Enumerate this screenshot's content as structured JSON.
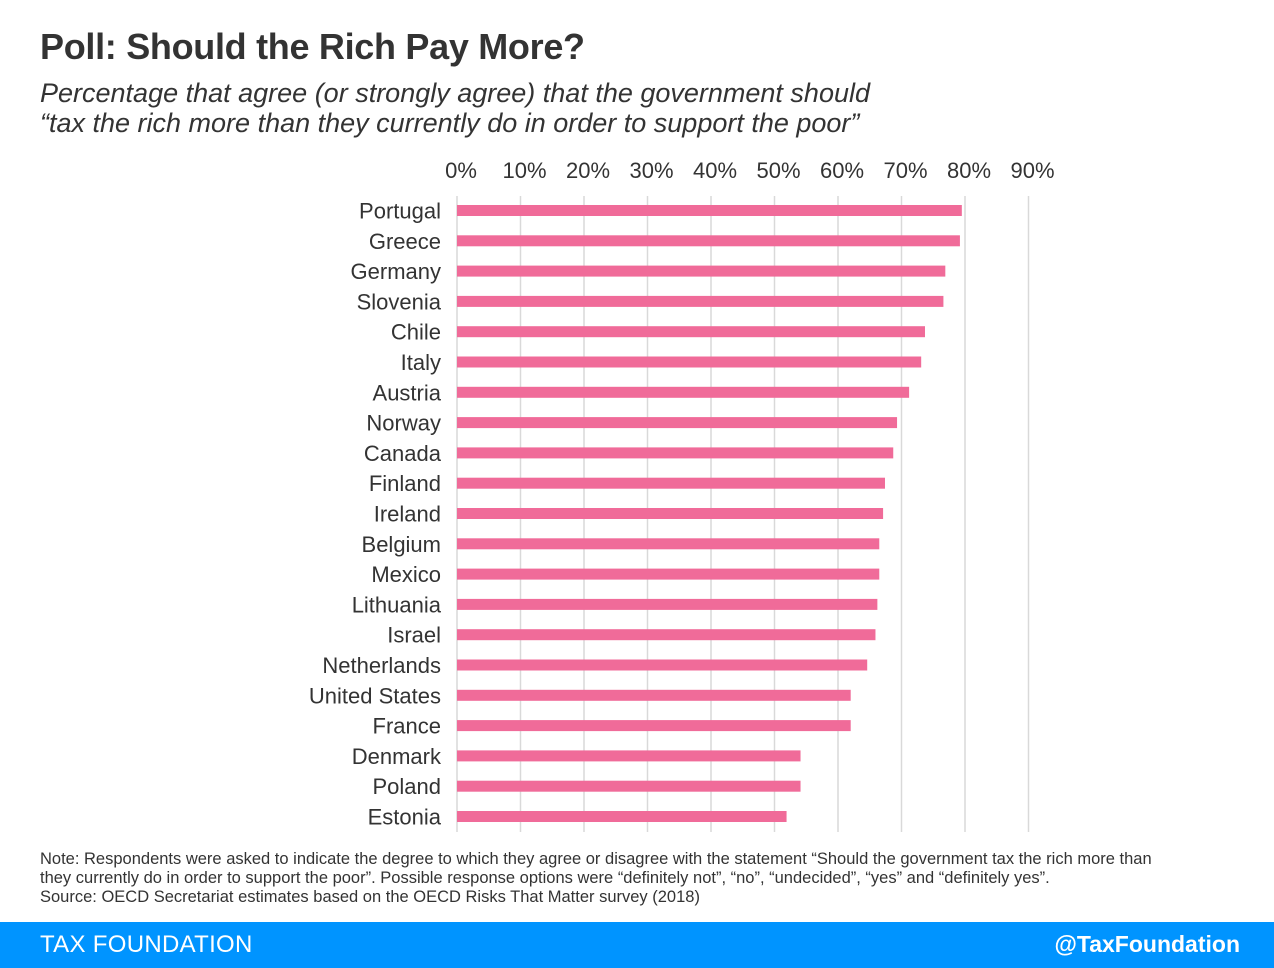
{
  "chart_data": {
    "type": "bar",
    "orientation": "horizontal",
    "title": "Poll: Should the Rich Pay More?",
    "subtitle_lines": [
      "Percentage that agree (or strongly agree) that the government should",
      "“tax the rich more than they currently do in order to support the poor”"
    ],
    "categories": [
      "Portugal",
      "Greece",
      "Germany",
      "Slovenia",
      "Chile",
      "Italy",
      "Austria",
      "Norway",
      "Canada",
      "Finland",
      "Ireland",
      "Belgium",
      "Mexico",
      "Lithuania",
      "Israel",
      "Netherlands",
      "United States",
      "France",
      "Denmark",
      "Poland",
      "Estonia"
    ],
    "values": [
      79.5,
      79.2,
      76.9,
      76.6,
      73.7,
      73.1,
      71.2,
      69.3,
      68.7,
      67.4,
      67.1,
      66.5,
      66.5,
      66.2,
      65.9,
      64.6,
      62.0,
      62.0,
      54.1,
      54.1,
      51.9
    ],
    "xlim": [
      0,
      90
    ],
    "x_ticks": [
      "0%",
      "10%",
      "20%",
      "30%",
      "40%",
      "50%",
      "60%",
      "70%",
      "80%",
      "90%"
    ],
    "xlabel": "",
    "ylabel": "",
    "grid": true,
    "legend": "none",
    "bar_color": "#f06b99",
    "grid_color": "#d9d9d9"
  },
  "note_lines": [
    "Note: Respondents were asked to indicate the degree to which they agree or disagree with the statement “Should the government tax the rich more than",
    "they currently do in order to support the poor”. Possible response options were “definitely not”, “no”, “undecided”, “yes” and “definitely yes”.",
    "Source: OECD Secretariat estimates based on the OECD Risks That Matter survey (2018)"
  ],
  "footer": {
    "brand": "TAX FOUNDATION",
    "handle": "@TaxFoundation",
    "color": "#0094ff"
  }
}
